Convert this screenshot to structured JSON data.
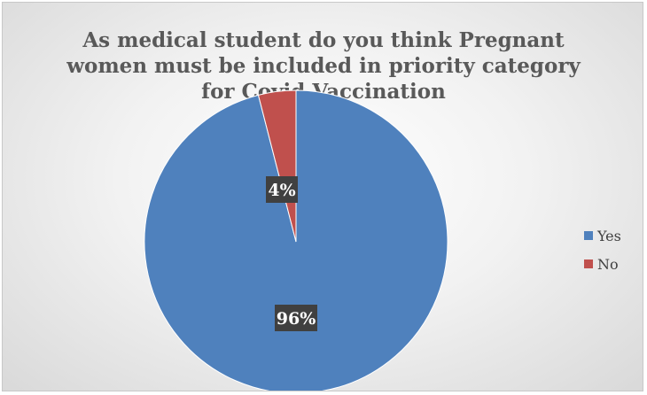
{
  "chart_data": {
    "type": "pie",
    "title_lines": [
      "As medical student do you think Pregnant",
      "women must be included in priority category",
      "for Covid Vaccination"
    ],
    "categories": [
      "Yes",
      "No"
    ],
    "values": [
      96,
      4
    ],
    "data_labels": [
      "96%",
      "4%"
    ],
    "colors": [
      "#4f81bd",
      "#c0504d"
    ],
    "legend_position": "right"
  }
}
